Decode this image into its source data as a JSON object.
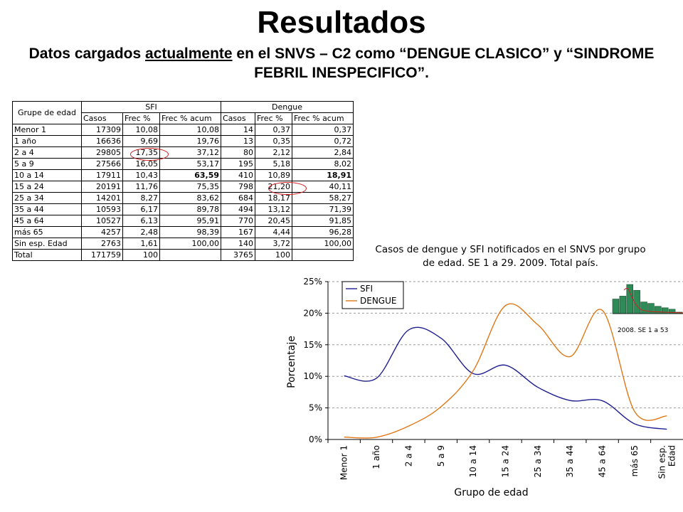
{
  "page": {
    "title": "Resultados",
    "subtitle_pre": "Datos cargados ",
    "subtitle_underlined": "actualmente",
    "subtitle_post": " en el SNVS – C2 como “DENGUE CLASICO” y “SINDROME FEBRIL INESPECIFICO”."
  },
  "table": {
    "corner_header": "Grupe de edad",
    "group_headers": [
      "SFI",
      "Dengue"
    ],
    "sub_headers": [
      "Casos",
      "Frec %",
      "Frec % acum",
      "Casos",
      "Frec %",
      "Frec % acum"
    ],
    "rows": [
      {
        "group": "Menor 1",
        "sfi_casos": "17309",
        "sfi_frec": "10,08",
        "sfi_acum": "10,08",
        "den_casos": "14",
        "den_frec": "0,37",
        "den_acum": "0,37"
      },
      {
        "group": "1 año",
        "sfi_casos": "16636",
        "sfi_frec": "9,69",
        "sfi_acum": "19,76",
        "den_casos": "13",
        "den_frec": "0,35",
        "den_acum": "0,72"
      },
      {
        "group": "2 a 4",
        "sfi_casos": "29805",
        "sfi_frec": "17,35",
        "sfi_acum": "37,12",
        "den_casos": "80",
        "den_frec": "2,12",
        "den_acum": "2,84"
      },
      {
        "group": "5 a 9",
        "sfi_casos": "27566",
        "sfi_frec": "16,05",
        "sfi_acum": "53,17",
        "den_casos": "195",
        "den_frec": "5,18",
        "den_acum": "8,02"
      },
      {
        "group": "10 a 14",
        "sfi_casos": "17911",
        "sfi_frec": "10,43",
        "sfi_acum": "63,59",
        "den_casos": "410",
        "den_frec": "10,89",
        "den_acum": "18,91"
      },
      {
        "group": "15 a 24",
        "sfi_casos": "20191",
        "sfi_frec": "11,76",
        "sfi_acum": "75,35",
        "den_casos": "798",
        "den_frec": "21,20",
        "den_acum": "40,11"
      },
      {
        "group": "25 a 34",
        "sfi_casos": "14201",
        "sfi_frec": "8,27",
        "sfi_acum": "83,62",
        "den_casos": "684",
        "den_frec": "18,17",
        "den_acum": "58,27"
      },
      {
        "group": "35 a 44",
        "sfi_casos": "10593",
        "sfi_frec": "6,17",
        "sfi_acum": "89,78",
        "den_casos": "494",
        "den_frec": "13,12",
        "den_acum": "71,39"
      },
      {
        "group": "45 a 64",
        "sfi_casos": "10527",
        "sfi_frec": "6,13",
        "sfi_acum": "95,91",
        "den_casos": "770",
        "den_frec": "20,45",
        "den_acum": "91,85"
      },
      {
        "group": "más 65",
        "sfi_casos": "4257",
        "sfi_frec": "2,48",
        "sfi_acum": "98,39",
        "den_casos": "167",
        "den_frec": "4,44",
        "den_acum": "96,28"
      },
      {
        "group": "Sin esp. Edad",
        "sfi_casos": "2763",
        "sfi_frec": "1,61",
        "sfi_acum": "100,00",
        "den_casos": "140",
        "den_frec": "3,72",
        "den_acum": "100,00"
      },
      {
        "group": "Total",
        "sfi_casos": "171759",
        "sfi_frec": "100",
        "sfi_acum": "",
        "den_casos": "3765",
        "den_frec": "100",
        "den_acum": ""
      }
    ],
    "highlight_color": "#d02020"
  },
  "caption": "Casos de dengue y SFI notificados en el SNVS por grupo de edad. SE 1 a 29. 2009. Total país.",
  "chart_data": {
    "type": "line",
    "categories": [
      "Menor 1",
      "1 año",
      "2 a 4",
      "5 a 9",
      "10 a 14",
      "15 a 24",
      "25 a 34",
      "35 a 44",
      "45 a 64",
      "más 65",
      "Sin esp. Edad"
    ],
    "series": [
      {
        "name": "SFI",
        "color": "#1f1f8f",
        "values": [
          10.08,
          9.69,
          17.35,
          16.05,
          10.43,
          11.76,
          8.27,
          6.17,
          6.13,
          2.48,
          1.61
        ]
      },
      {
        "name": "DENGUE",
        "color": "#e07818",
        "values": [
          0.37,
          0.35,
          2.12,
          5.18,
          10.89,
          21.2,
          18.17,
          13.12,
          20.45,
          4.44,
          3.72
        ]
      }
    ],
    "ylabel": "Porcentaje",
    "xlabel": "Grupo de edad",
    "ylim": [
      0,
      25
    ],
    "yticks": [
      "0%",
      "5%",
      "10%",
      "15%",
      "20%",
      "25%"
    ],
    "grid": true,
    "legend": "top-left",
    "inset": {
      "label": "2008. SE 1 a 53",
      "bar_color": "#2e8b57",
      "line_color": "#d02020",
      "values": [
        5,
        6,
        10,
        8,
        4,
        3.5,
        2.5,
        2,
        1.5,
        0.5
      ]
    }
  }
}
